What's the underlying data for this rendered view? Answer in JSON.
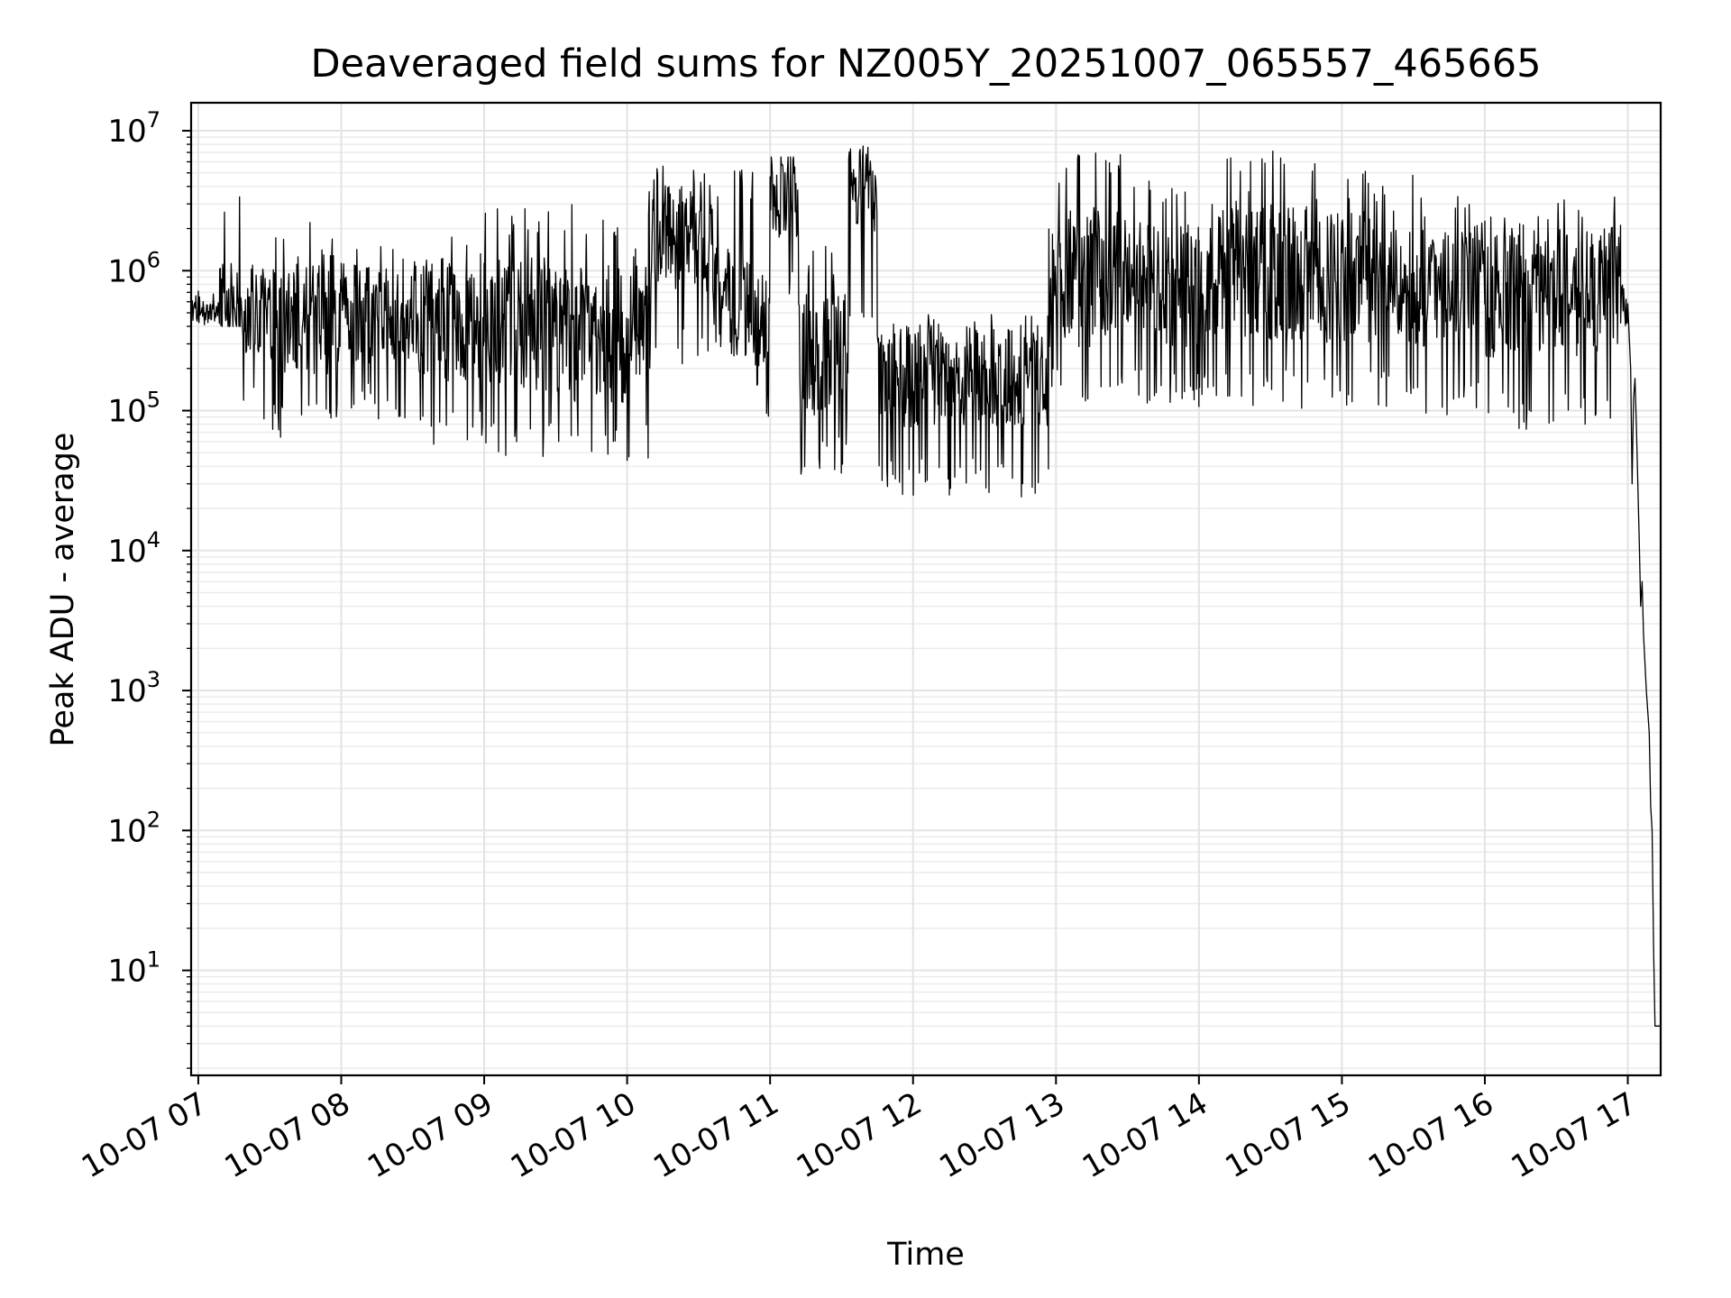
{
  "chart_data": {
    "type": "line",
    "title": "Deaveraged field sums for NZ005Y_20251007_065557_465665",
    "xlabel": "Time",
    "ylabel": "Peak ADU - average",
    "yscale": "log",
    "ylim_exponent": [
      0.25,
      7.2
    ],
    "xlim_hours": [
      6.95,
      17.23
    ],
    "grid": true,
    "line_color": "#000000",
    "x_ticks": [
      {
        "hour": 7,
        "label": "10-07 07"
      },
      {
        "hour": 8,
        "label": "10-07 08"
      },
      {
        "hour": 9,
        "label": "10-07 09"
      },
      {
        "hour": 10,
        "label": "10-07 10"
      },
      {
        "hour": 11,
        "label": "10-07 11"
      },
      {
        "hour": 12,
        "label": "10-07 12"
      },
      {
        "hour": 13,
        "label": "10-07 13"
      },
      {
        "hour": 14,
        "label": "10-07 14"
      },
      {
        "hour": 15,
        "label": "10-07 15"
      },
      {
        "hour": 16,
        "label": "10-07 16"
      },
      {
        "hour": 17,
        "label": "10-07 17"
      }
    ],
    "y_ticks": [
      {
        "exp": 1,
        "base": "10",
        "sup": "1"
      },
      {
        "exp": 2,
        "base": "10",
        "sup": "2"
      },
      {
        "exp": 3,
        "base": "10",
        "sup": "3"
      },
      {
        "exp": 4,
        "base": "10",
        "sup": "4"
      },
      {
        "exp": 5,
        "base": "10",
        "sup": "5"
      },
      {
        "exp": 6,
        "base": "10",
        "sup": "6"
      },
      {
        "exp": 7,
        "base": "10",
        "sup": "7"
      }
    ],
    "series": [
      {
        "name": "Peak ADU - average",
        "segments": [
          {
            "start_hour": 6.95,
            "end_hour": 7.15,
            "median": 500000,
            "min": 350000,
            "max": 750000
          },
          {
            "start_hour": 7.15,
            "end_hour": 7.3,
            "median": 600000,
            "min": 400000,
            "max": 4200000
          },
          {
            "start_hour": 7.3,
            "end_hour": 7.5,
            "median": 500000,
            "min": 80000,
            "max": 1100000
          },
          {
            "start_hour": 7.5,
            "end_hour": 8.0,
            "median": 500000,
            "min": 60000,
            "max": 2300000
          },
          {
            "start_hour": 8.0,
            "end_hour": 8.5,
            "median": 500000,
            "min": 80000,
            "max": 1600000
          },
          {
            "start_hour": 8.5,
            "end_hour": 9.0,
            "median": 450000,
            "min": 50000,
            "max": 2000000
          },
          {
            "start_hour": 9.0,
            "end_hour": 9.5,
            "median": 400000,
            "min": 45000,
            "max": 2800000
          },
          {
            "start_hour": 9.5,
            "end_hour": 10.0,
            "median": 350000,
            "min": 40000,
            "max": 3000000
          },
          {
            "start_hour": 10.0,
            "end_hour": 10.15,
            "median": 500000,
            "min": 40000,
            "max": 2000000
          },
          {
            "start_hour": 10.15,
            "end_hour": 10.6,
            "median": 1800000,
            "min": 200000,
            "max": 5800000
          },
          {
            "start_hour": 10.6,
            "end_hour": 10.9,
            "median": 600000,
            "min": 200000,
            "max": 5500000
          },
          {
            "start_hour": 10.9,
            "end_hour": 11.0,
            "median": 300000,
            "min": 60000,
            "max": 1000000
          },
          {
            "start_hour": 11.0,
            "end_hour": 11.2,
            "median": 3500000,
            "min": 500000,
            "max": 6500000
          },
          {
            "start_hour": 11.2,
            "end_hour": 11.55,
            "median": 250000,
            "min": 35000,
            "max": 1500000
          },
          {
            "start_hour": 11.55,
            "end_hour": 11.75,
            "median": 3500000,
            "min": 400000,
            "max": 7800000
          },
          {
            "start_hour": 11.75,
            "end_hour": 12.95,
            "median": 180000,
            "min": 23000,
            "max": 520000
          },
          {
            "start_hour": 12.95,
            "end_hour": 13.5,
            "median": 900000,
            "min": 100000,
            "max": 7000000
          },
          {
            "start_hour": 13.5,
            "end_hour": 14.0,
            "median": 800000,
            "min": 100000,
            "max": 4500000
          },
          {
            "start_hour": 14.0,
            "end_hour": 14.5,
            "median": 1000000,
            "min": 100000,
            "max": 6500000
          },
          {
            "start_hour": 14.5,
            "end_hour": 15.0,
            "median": 1000000,
            "min": 100000,
            "max": 7200000
          },
          {
            "start_hour": 15.0,
            "end_hour": 15.5,
            "median": 900000,
            "min": 100000,
            "max": 5300000
          },
          {
            "start_hour": 15.5,
            "end_hour": 16.0,
            "median": 800000,
            "min": 90000,
            "max": 3800000
          },
          {
            "start_hour": 16.0,
            "end_hour": 16.95,
            "median": 700000,
            "min": 70000,
            "max": 3500000
          },
          {
            "start_hour": 16.95,
            "end_hour": 17.0,
            "median": 550000,
            "min": 400000,
            "max": 1800000
          }
        ],
        "tail": [
          {
            "hour": 17.0,
            "value": 580000
          },
          {
            "hour": 17.02,
            "value": 200000
          },
          {
            "hour": 17.03,
            "value": 30000
          },
          {
            "hour": 17.04,
            "value": 120000
          },
          {
            "hour": 17.05,
            "value": 170000
          },
          {
            "hour": 17.06,
            "value": 80000
          },
          {
            "hour": 17.08,
            "value": 12000
          },
          {
            "hour": 17.09,
            "value": 4000
          },
          {
            "hour": 17.1,
            "value": 6000
          },
          {
            "hour": 17.11,
            "value": 2500
          },
          {
            "hour": 17.13,
            "value": 1000
          },
          {
            "hour": 17.15,
            "value": 500
          },
          {
            "hour": 17.16,
            "value": 150
          },
          {
            "hour": 17.17,
            "value": 100
          },
          {
            "hour": 17.18,
            "value": 15
          },
          {
            "hour": 17.19,
            "value": 4
          },
          {
            "hour": 17.23,
            "value": 4
          }
        ]
      }
    ]
  }
}
